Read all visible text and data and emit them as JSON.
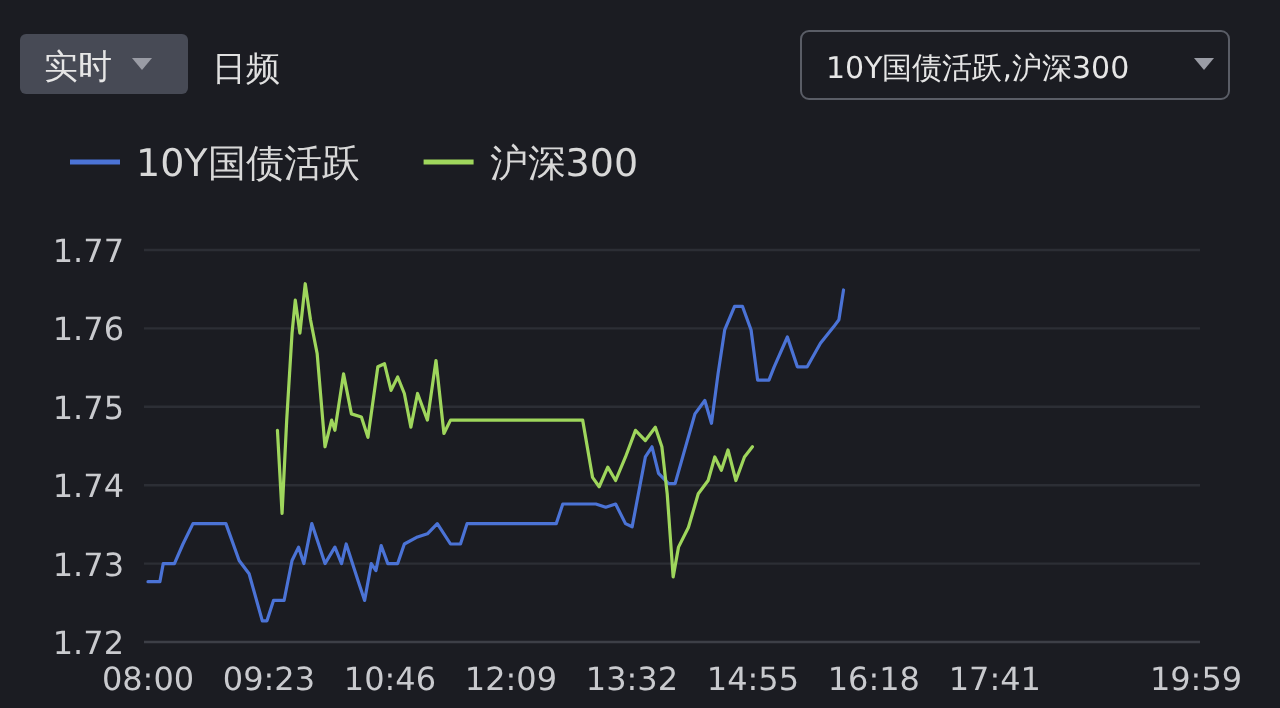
{
  "chart_data": {
    "type": "line",
    "annotations": [
      "实时",
      "日频",
      "10Y国债活跃,沪深300"
    ],
    "xlim": [
      8,
      19.9833
    ],
    "xticks": [
      {
        "value": 8,
        "label": "08:00"
      },
      {
        "value": 9.3833,
        "label": "09:23"
      },
      {
        "value": 10.7667,
        "label": "10:46"
      },
      {
        "value": 12.15,
        "label": "12:09"
      },
      {
        "value": 13.5333,
        "label": "13:32"
      },
      {
        "value": 14.9167,
        "label": "14:55"
      },
      {
        "value": 16.3,
        "label": "16:18"
      },
      {
        "value": 17.6833,
        "label": "17:41"
      },
      {
        "value": 19.9833,
        "label": "19:59"
      }
    ],
    "ylim": [
      1.72,
      1.77
    ],
    "yticks": [
      1.72,
      1.73,
      1.74,
      1.75,
      1.76,
      1.77
    ],
    "grid": "y",
    "legend": "top left",
    "marker": "none",
    "line_style": "solid",
    "series": [
      {
        "name": "10Y国债活跃",
        "color": "#4b73d6",
        "x": [
          8.0,
          8.136,
          8.174,
          8.302,
          8.4,
          8.514,
          8.891,
          9.042,
          9.156,
          9.307,
          9.36,
          9.435,
          9.556,
          9.647,
          9.722,
          9.782,
          9.873,
          10.024,
          10.137,
          10.213,
          10.266,
          10.402,
          10.477,
          10.553,
          10.606,
          10.666,
          10.742,
          10.855,
          10.931,
          11.082,
          11.195,
          11.308,
          11.459,
          11.573,
          11.648,
          12.668,
          12.743,
          13.121,
          13.234,
          13.347,
          13.46,
          13.536,
          13.687,
          13.763,
          13.838,
          13.952,
          14.027,
          14.254,
          14.367,
          14.443,
          14.518,
          14.594,
          14.707,
          14.798,
          14.896,
          14.971,
          15.1,
          15.16,
          15.311,
          15.425,
          15.538,
          15.689,
          15.84,
          15.9,
          15.953
        ],
        "values": [
          1.7277,
          1.7277,
          1.73,
          1.73,
          1.7325,
          1.7351,
          1.7351,
          1.7304,
          1.7287,
          1.7227,
          1.7227,
          1.7253,
          1.7253,
          1.7304,
          1.7321,
          1.73,
          1.7351,
          1.73,
          1.7321,
          1.73,
          1.7325,
          1.7278,
          1.7253,
          1.73,
          1.7291,
          1.7323,
          1.73,
          1.73,
          1.7325,
          1.7334,
          1.7338,
          1.7351,
          1.7325,
          1.7325,
          1.7351,
          1.7351,
          1.7376,
          1.7376,
          1.7372,
          1.7376,
          1.7351,
          1.7347,
          1.7436,
          1.7449,
          1.7415,
          1.7402,
          1.7402,
          1.7491,
          1.7508,
          1.7479,
          1.7542,
          1.7598,
          1.7628,
          1.7628,
          1.7598,
          1.7534,
          1.7534,
          1.7551,
          1.7589,
          1.7551,
          1.7551,
          1.7581,
          1.7602,
          1.7611,
          1.7649
        ]
      },
      {
        "name": "沪深300",
        "color": "#9fd65c",
        "x": [
          9.48,
          9.533,
          9.586,
          9.647,
          9.684,
          9.737,
          9.798,
          9.858,
          9.934,
          10.024,
          10.1,
          10.137,
          10.236,
          10.326,
          10.44,
          10.515,
          10.628,
          10.704,
          10.779,
          10.855,
          10.931,
          11.006,
          11.082,
          11.195,
          11.293,
          11.384,
          11.459,
          12.97,
          13.083,
          13.159,
          13.257,
          13.347,
          13.46,
          13.574,
          13.687,
          13.801,
          13.876,
          13.937,
          14.005,
          14.066,
          14.179,
          14.292,
          14.405,
          14.481,
          14.556,
          14.632,
          14.722,
          14.82,
          14.911
        ],
        "values": [
          1.747,
          1.7364,
          1.7483,
          1.7594,
          1.7636,
          1.7594,
          1.7657,
          1.7611,
          1.7568,
          1.7449,
          1.7483,
          1.747,
          1.7542,
          1.7491,
          1.7487,
          1.7461,
          1.7551,
          1.7555,
          1.7521,
          1.7538,
          1.7517,
          1.7474,
          1.7517,
          1.7483,
          1.7559,
          1.7466,
          1.7483,
          1.7483,
          1.741,
          1.7398,
          1.7423,
          1.7406,
          1.7436,
          1.747,
          1.7457,
          1.7474,
          1.7449,
          1.7389,
          1.7283,
          1.7321,
          1.7346,
          1.7389,
          1.7406,
          1.7436,
          1.7419,
          1.7445,
          1.7406,
          1.7436,
          1.7449
        ]
      }
    ]
  }
}
